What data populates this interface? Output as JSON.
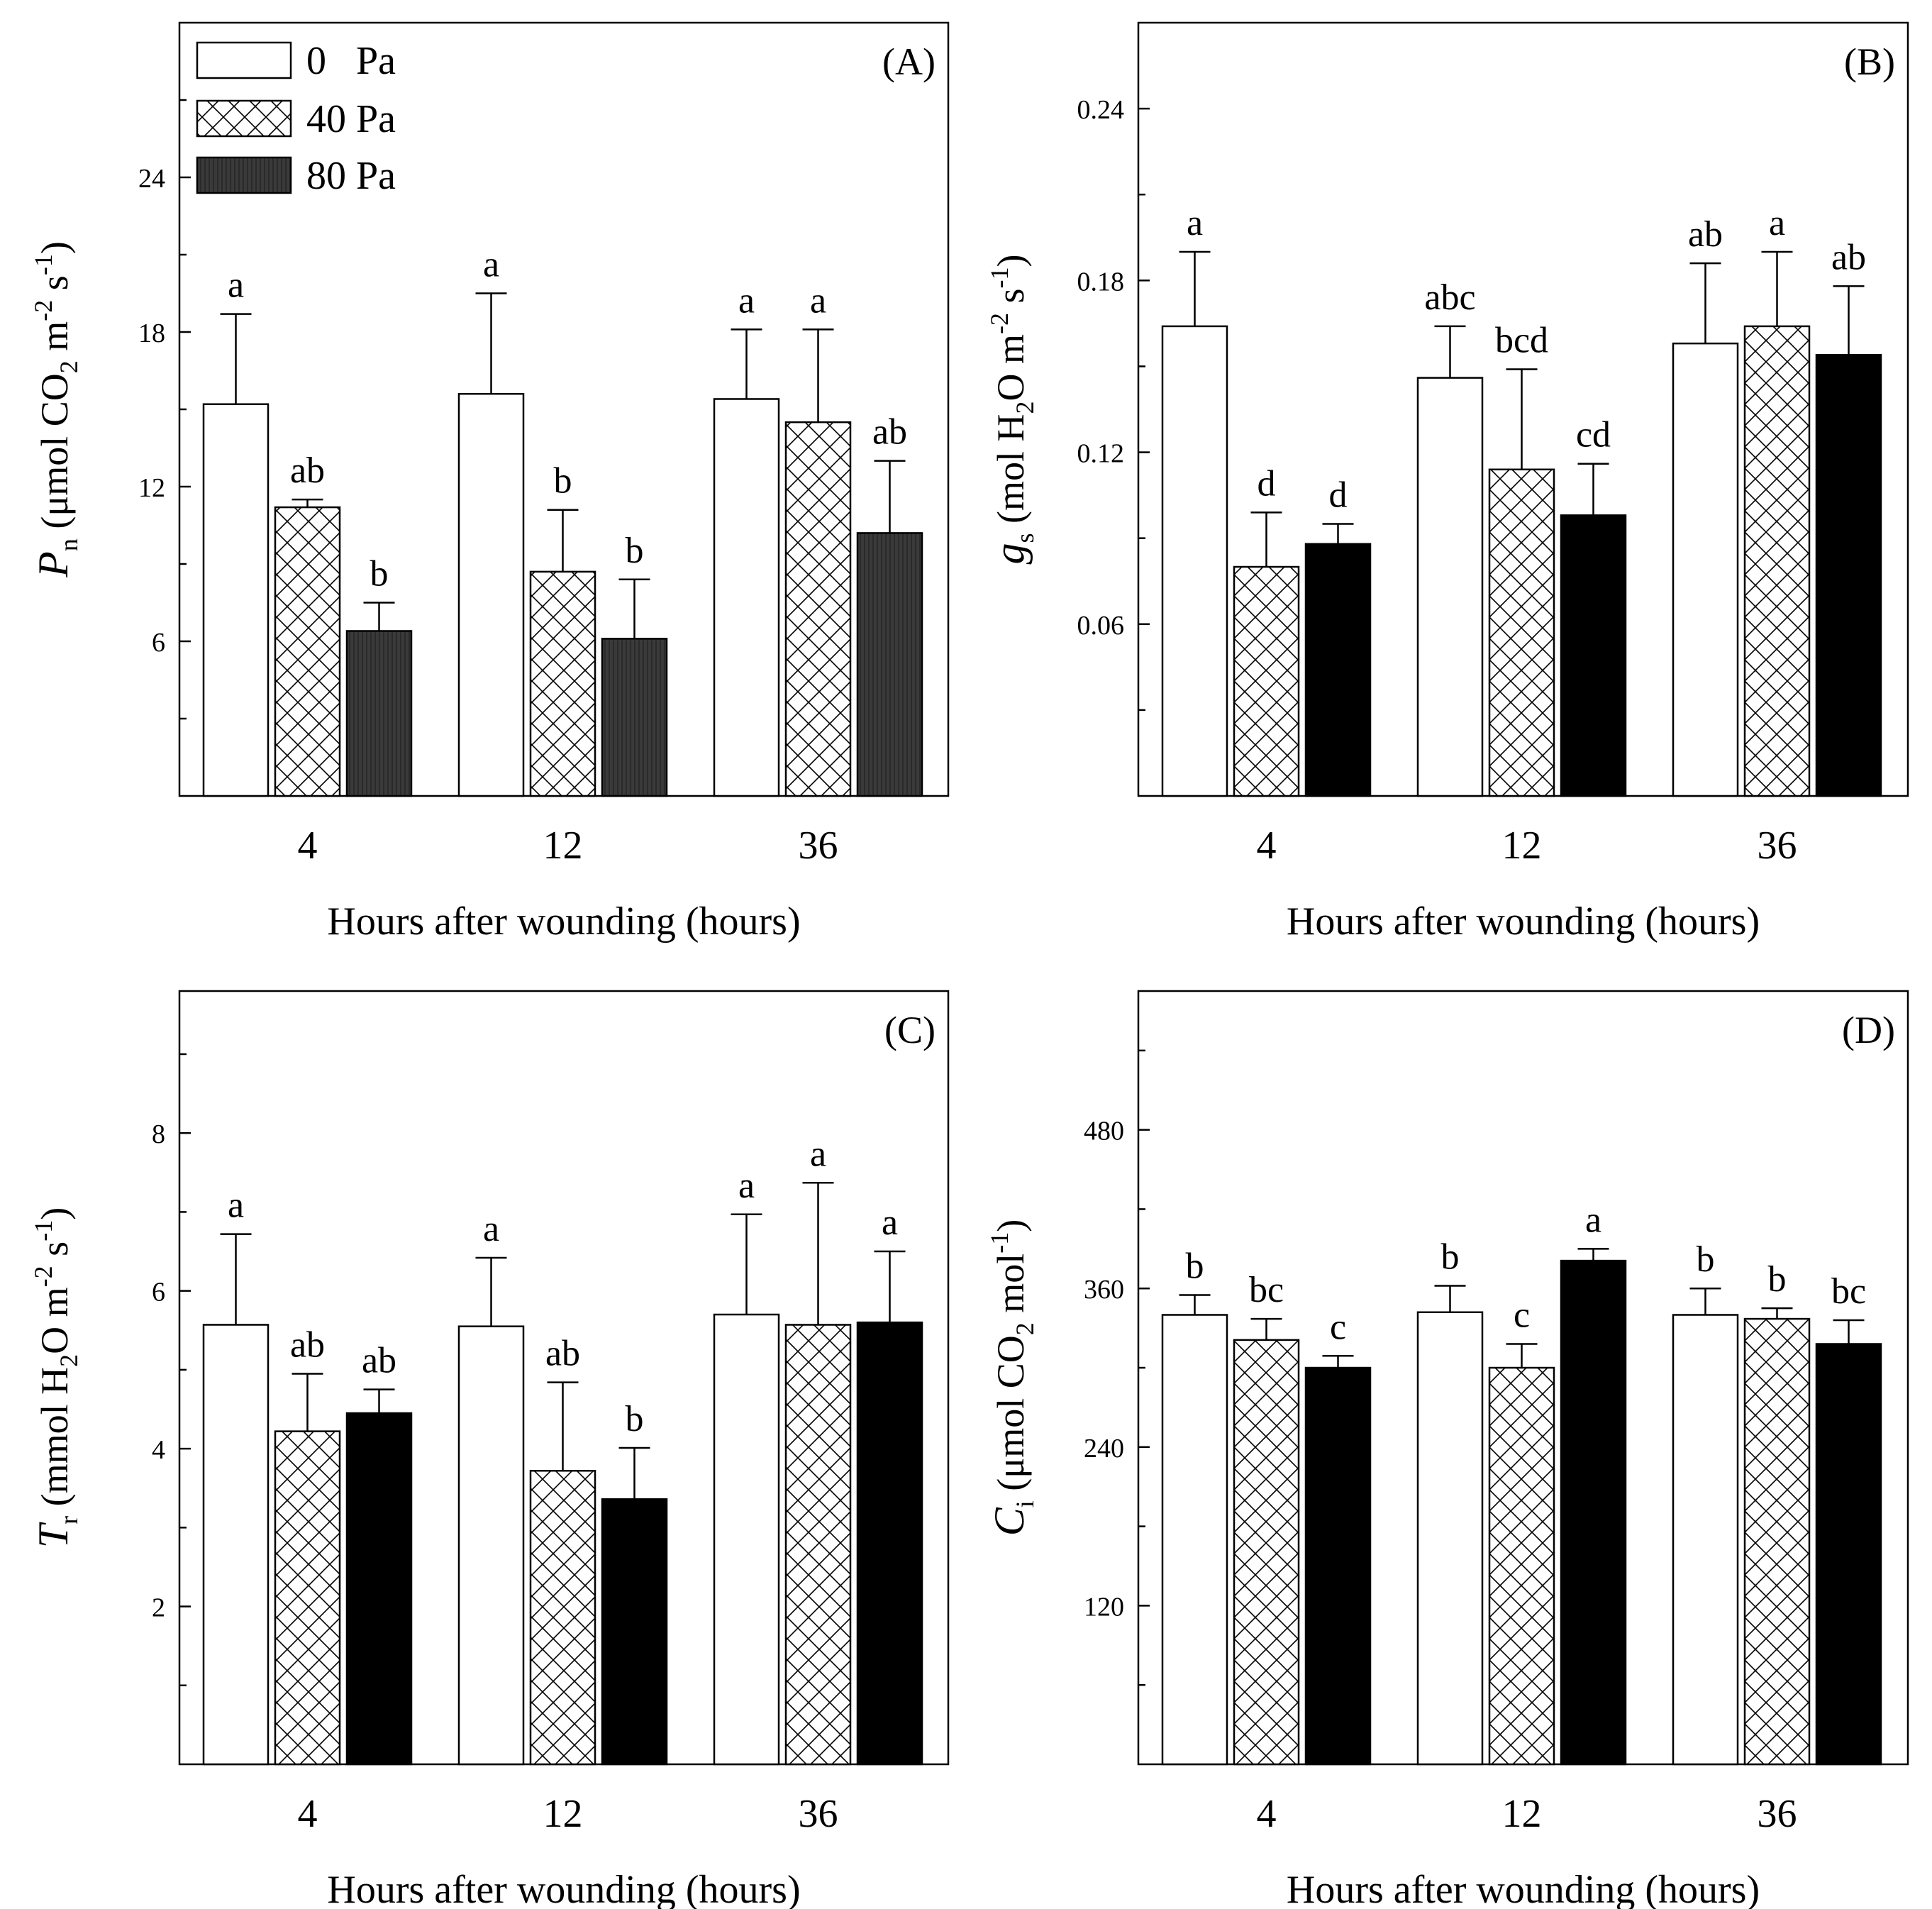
{
  "legend": {
    "items": [
      {
        "label": "0   Pa",
        "style": "white"
      },
      {
        "label": "40 Pa",
        "style": "hatch"
      },
      {
        "label": "80 Pa",
        "style": "darkgray"
      }
    ]
  },
  "chart_data": [
    {
      "type": "bar",
      "panel": "(A)",
      "title": "",
      "categories": [
        "4",
        "12",
        "36"
      ],
      "xlabel": "Hours after wounding (hours)",
      "ylabel": {
        "main": "P",
        "sub": "n",
        "rest": " (μmol CO",
        "sub2": "2",
        "rest2": " m",
        "sup": "-2",
        "rest3": " s",
        "sup2": "-1",
        "close": ")"
      },
      "ylim": [
        0,
        30
      ],
      "yticks": [
        6,
        12,
        18,
        24
      ],
      "ytick_labels": [
        "6",
        "12",
        "18",
        "24"
      ],
      "series": [
        {
          "name": "0   Pa",
          "values": [
            15.2,
            15.6,
            15.4
          ],
          "errors": [
            3.5,
            3.9,
            2.7
          ],
          "labels": [
            "a",
            "a",
            "a"
          ],
          "style": "white"
        },
        {
          "name": "40 Pa",
          "values": [
            11.2,
            8.7,
            14.5
          ],
          "errors": [
            0.3,
            2.4,
            3.6
          ],
          "labels": [
            "ab",
            "b",
            "a"
          ],
          "style": "hatch"
        },
        {
          "name": "80 Pa",
          "values": [
            6.4,
            6.1,
            10.2
          ],
          "errors": [
            1.1,
            2.3,
            2.8
          ],
          "labels": [
            "b",
            "b",
            "ab"
          ],
          "style": "darkgray"
        }
      ]
    },
    {
      "type": "bar",
      "panel": "(B)",
      "title": "",
      "categories": [
        "4",
        "12",
        "36"
      ],
      "xlabel": "Hours after wounding (hours)",
      "ylabel": {
        "main": "g",
        "sub": "s",
        "rest": " (mol H",
        "sub2": "2",
        "rest2": "O m",
        "sup": "-2",
        "rest3": " s",
        "sup2": "-1",
        "close": ")"
      },
      "ylim": [
        0,
        0.27
      ],
      "yticks": [
        0.06,
        0.12,
        0.18,
        0.24
      ],
      "ytick_labels": [
        "0.06",
        "0.12",
        "0.18",
        "0.24"
      ],
      "series": [
        {
          "name": "0   Pa",
          "values": [
            0.164,
            0.146,
            0.158
          ],
          "errors": [
            0.026,
            0.018,
            0.028
          ],
          "labels": [
            "a",
            "abc",
            "ab"
          ],
          "style": "white"
        },
        {
          "name": "40 Pa",
          "values": [
            0.08,
            0.114,
            0.164
          ],
          "errors": [
            0.019,
            0.035,
            0.026
          ],
          "labels": [
            "d",
            "bcd",
            "a"
          ],
          "style": "hatch"
        },
        {
          "name": "80 Pa",
          "values": [
            0.088,
            0.098,
            0.154
          ],
          "errors": [
            0.007,
            0.018,
            0.024
          ],
          "labels": [
            "d",
            "cd",
            "ab"
          ],
          "style": "black"
        }
      ]
    },
    {
      "type": "bar",
      "panel": "(C)",
      "title": "",
      "categories": [
        "4",
        "12",
        "36"
      ],
      "xlabel": "Hours after wounding (hours)",
      "ylabel": {
        "main": "T",
        "sub": "r",
        "rest": " (mmol H",
        "sub2": "2",
        "rest2": "O m",
        "sup": "-2",
        "rest3": " s",
        "sup2": "-1",
        "close": ")"
      },
      "ylim": [
        0,
        9.8
      ],
      "yticks": [
        2,
        4,
        6,
        8
      ],
      "ytick_labels": [
        "2",
        "4",
        "6",
        "8"
      ],
      "series": [
        {
          "name": "0   Pa",
          "values": [
            5.57,
            5.55,
            5.7
          ],
          "errors": [
            1.15,
            0.87,
            1.27
          ],
          "labels": [
            "a",
            "a",
            "a"
          ],
          "style": "white"
        },
        {
          "name": "40 Pa",
          "values": [
            4.22,
            3.72,
            5.57
          ],
          "errors": [
            0.73,
            1.12,
            1.8
          ],
          "labels": [
            "ab",
            "ab",
            "a"
          ],
          "style": "hatch"
        },
        {
          "name": "80 Pa",
          "values": [
            4.45,
            3.36,
            5.6
          ],
          "errors": [
            0.3,
            0.65,
            0.9
          ],
          "labels": [
            "ab",
            "b",
            "a"
          ],
          "style": "black"
        }
      ]
    },
    {
      "type": "bar",
      "panel": "(D)",
      "title": "",
      "categories": [
        "4",
        "12",
        "36"
      ],
      "xlabel": "Hours after wounding (hours)",
      "ylabel": {
        "main": "C",
        "sub": "i",
        "rest": " (μmol CO",
        "sub2": "2",
        "rest2": " mol",
        "sup": "-1",
        "rest3": "",
        "sup2": "",
        "close": ")"
      },
      "ylim": [
        0,
        585
      ],
      "yticks": [
        120,
        240,
        360,
        480
      ],
      "ytick_labels": [
        "120",
        "240",
        "360",
        "480"
      ],
      "series": [
        {
          "name": "0   Pa",
          "values": [
            340,
            342,
            340
          ],
          "errors": [
            15,
            20,
            20
          ],
          "labels": [
            "b",
            "b",
            "b"
          ],
          "style": "white"
        },
        {
          "name": "40 Pa",
          "values": [
            321,
            300,
            337
          ],
          "errors": [
            16,
            18,
            8
          ],
          "labels": [
            "bc",
            "c",
            "b"
          ],
          "style": "hatch"
        },
        {
          "name": "80 Pa",
          "values": [
            300,
            381,
            318
          ],
          "errors": [
            9,
            9,
            18
          ],
          "labels": [
            "c",
            "a",
            "bc"
          ],
          "style": "black"
        }
      ]
    }
  ]
}
